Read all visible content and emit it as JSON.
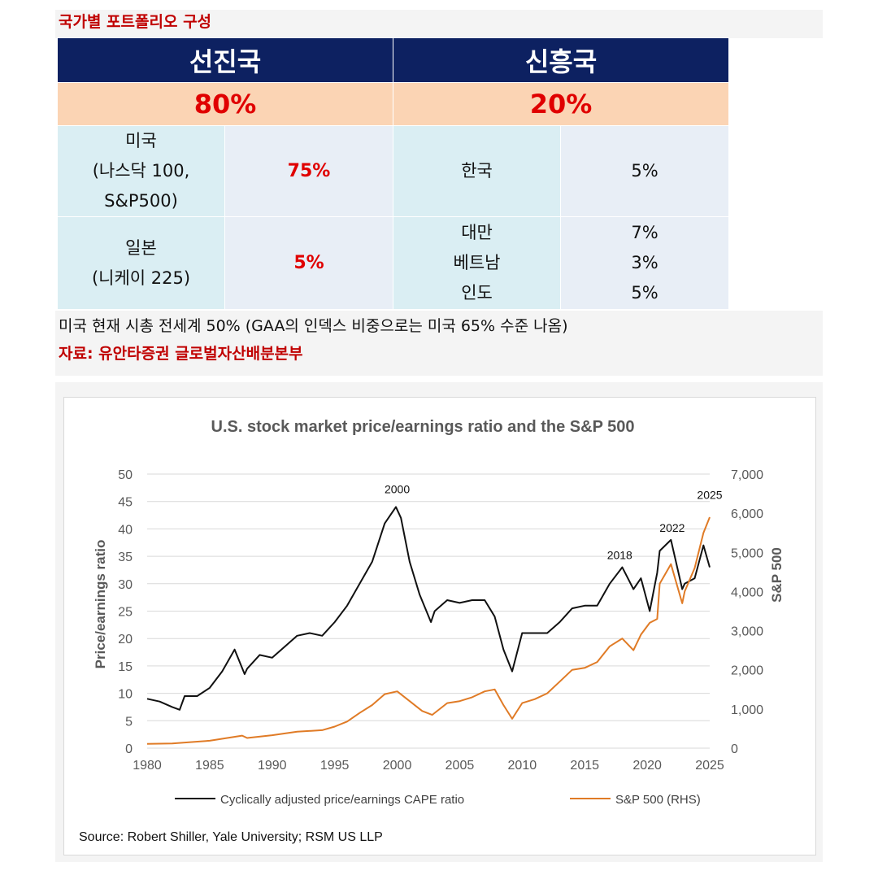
{
  "header": {
    "title": "국가별 포트폴리오 구성"
  },
  "table": {
    "developed": {
      "label": "선진국",
      "percent": "80%"
    },
    "emerging": {
      "label": "신흥국",
      "percent": "20%"
    },
    "us": {
      "line1": "미국",
      "line2": "(나스닥 100,",
      "line3": "S&P500)",
      "value": "75%"
    },
    "japan": {
      "line1": "일본",
      "line2": "(니케이 225)",
      "value": "5%"
    },
    "korea": {
      "label": "한국",
      "value": "5%"
    },
    "taiwan": {
      "label": "대만",
      "value": "7%"
    },
    "vietnam": {
      "label": "베트남",
      "value": "3%"
    },
    "india": {
      "label": "인도",
      "value": "5%"
    }
  },
  "note": "미국 현재 시총 전세계 50% (GAA의 인덱스 비중으로는 미국 65% 수준 나옴)",
  "source_kr": "자료: 유안타증권 글로벌자산배분본부",
  "chart_data": {
    "type": "line",
    "title": "U.S. stock market price/earnings ratio and the S&P 500",
    "ylabel": "Price/earnings ratio",
    "y2label": "S&P 500",
    "xlim": [
      1980,
      2025
    ],
    "ylim": [
      0,
      50
    ],
    "y2lim": [
      0,
      7000
    ],
    "x_ticks": [
      "1980",
      "1985",
      "1990",
      "1995",
      "2000",
      "2005",
      "2010",
      "2015",
      "2020",
      "2025"
    ],
    "y_ticks": [
      "0",
      "5",
      "10",
      "15",
      "20",
      "25",
      "30",
      "35",
      "40",
      "45",
      "50"
    ],
    "y2_ticks": [
      "0",
      "1,000",
      "2,000",
      "3,000",
      "4,000",
      "5,000",
      "6,000",
      "7,000"
    ],
    "grid": true,
    "legend_position": "bottom",
    "series": [
      {
        "name": "Cyclically adjusted price/earnings CAPE ratio",
        "axis": "left",
        "color": "#111111",
        "x": [
          1980,
          1981,
          1982,
          1982.6,
          1983,
          1984,
          1985,
          1986,
          1987,
          1987.8,
          1988,
          1989,
          1990,
          1991,
          1992,
          1993,
          1994,
          1995,
          1996,
          1997,
          1998,
          1999,
          1999.9,
          2000.3,
          2001,
          2001.8,
          2002.7,
          2003,
          2004,
          2005,
          2006,
          2007,
          2007.8,
          2008.5,
          2009.2,
          2010,
          2011,
          2012,
          2013,
          2014,
          2015,
          2016,
          2017,
          2018,
          2018.9,
          2019.5,
          2020.2,
          2020.8,
          2021,
          2021.9,
          2022.8,
          2023,
          2023.8,
          2024.5,
          2025
        ],
        "values": [
          9,
          8.5,
          7.5,
          7,
          9.5,
          9.5,
          11,
          14,
          18,
          13.5,
          14.5,
          17,
          16.5,
          18.5,
          20.5,
          21,
          20.5,
          23,
          26,
          30,
          34,
          41,
          44,
          42,
          34,
          28,
          23,
          25,
          27,
          26.5,
          27,
          27,
          24,
          18,
          14,
          21,
          21,
          21,
          23,
          25.5,
          26,
          26,
          30,
          33,
          29,
          31,
          25,
          32,
          36,
          38,
          29,
          30,
          31,
          37,
          33
        ]
      },
      {
        "name": "S&P 500 (RHS)",
        "axis": "right",
        "color": "#e07b26",
        "x": [
          1980,
          1982,
          1985,
          1987.6,
          1988,
          1990,
          1992,
          1994,
          1995,
          1996,
          1997,
          1998,
          1999,
          2000,
          2001,
          2002,
          2002.8,
          2004,
          2005,
          2006,
          2007,
          2007.8,
          2008.5,
          2009.2,
          2010,
          2011,
          2012,
          2013,
          2014,
          2015,
          2016,
          2017,
          2018,
          2018.9,
          2019.5,
          2020.2,
          2020.8,
          2021,
          2021.9,
          2022.8,
          2023,
          2023.8,
          2024.5,
          2025
        ],
        "values": [
          110,
          120,
          190,
          320,
          260,
          330,
          420,
          460,
          550,
          680,
          900,
          1100,
          1380,
          1450,
          1200,
          950,
          850,
          1150,
          1200,
          1300,
          1450,
          1500,
          1100,
          750,
          1150,
          1250,
          1400,
          1700,
          2000,
          2050,
          2200,
          2600,
          2800,
          2500,
          2900,
          3200,
          3300,
          4200,
          4700,
          3700,
          4000,
          4600,
          5500,
          5900
        ]
      }
    ],
    "annotations": [
      "2000",
      "2018",
      "2022",
      "2025"
    ],
    "source": "Source: Robert Shiller, Yale University; RSM US LLP"
  }
}
